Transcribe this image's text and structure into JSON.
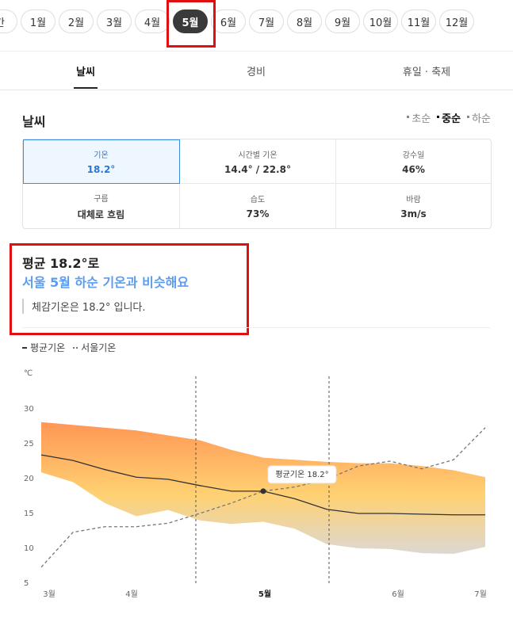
{
  "months": {
    "items": [
      "간",
      "1월",
      "2월",
      "3월",
      "4월",
      "5월",
      "6월",
      "7월",
      "8월",
      "9월",
      "10월",
      "11월",
      "12월"
    ],
    "selected": 5
  },
  "tabs": {
    "items": [
      "날씨",
      "경비",
      "휴일 · 축제"
    ],
    "selected": 0
  },
  "section": {
    "title": "날씨",
    "periods": [
      "초순",
      "중순",
      "하순"
    ],
    "selected_period": 1
  },
  "stats": {
    "rows": [
      [
        {
          "label": "기온",
          "value": "18.2°"
        },
        {
          "label": "시간별 기온",
          "value": "14.4° / 22.8°"
        },
        {
          "label": "강수일",
          "value": "46%"
        }
      ],
      [
        {
          "label": "구름",
          "value": "대체로 흐림"
        },
        {
          "label": "습도",
          "value": "73%"
        },
        {
          "label": "바람",
          "value": "3m/s"
        }
      ]
    ],
    "selected": 0
  },
  "summary": {
    "headline": "평균 18.2°로",
    "subline": "서울 5월 하순 기온과 비슷해요",
    "note": "체감기온은 18.2° 입니다."
  },
  "chart_data": {
    "type": "line",
    "unit": "℃",
    "x": [
      0,
      2,
      4,
      6,
      8,
      10,
      12,
      14,
      16,
      18,
      20,
      22,
      24,
      26,
      28
    ],
    "xlim": [
      0,
      28
    ],
    "xticks": [
      {
        "value": 0.5,
        "label": "3월"
      },
      {
        "value": 5.7,
        "label": "4월"
      },
      {
        "value": 14.1,
        "label": "5월"
      },
      {
        "value": 22.5,
        "label": "6월"
      },
      {
        "value": 27.7,
        "label": "7월"
      }
    ],
    "selected_xtick": 2,
    "ylim": [
      5,
      30
    ],
    "yticks": [
      5,
      10,
      15,
      20,
      25,
      30
    ],
    "vlines": [
      9.75,
      18.15
    ],
    "range": {
      "high": [
        28.1,
        27.7,
        27.3,
        26.9,
        26.2,
        25.5,
        24.1,
        23.0,
        22.7,
        22.4,
        22.2,
        22.2,
        21.8,
        21.2,
        20.2
      ],
      "low": [
        20.9,
        19.5,
        16.5,
        14.6,
        15.5,
        14.0,
        13.5,
        13.8,
        12.8,
        10.6,
        10.0,
        9.9,
        9.3,
        9.2,
        10.2
      ]
    },
    "series": [
      {
        "name": "평균기온",
        "color": "#333333",
        "dashed": false,
        "values": [
          23.4,
          22.6,
          21.3,
          20.2,
          19.9,
          19.0,
          18.2,
          18.2,
          17.1,
          15.6,
          15.0,
          15.0,
          14.9,
          14.8,
          14.8
        ]
      },
      {
        "name": "서울기온",
        "color": "#777777",
        "dashed": true,
        "values": [
          7.3,
          12.3,
          13.1,
          13.1,
          13.6,
          15.0,
          16.5,
          18.2,
          18.8,
          19.9,
          21.8,
          22.5,
          21.4,
          22.7,
          27.3
        ]
      }
    ],
    "tooltip": {
      "text": "평균기온 18.2°",
      "x": 14,
      "y": 18.2
    }
  }
}
